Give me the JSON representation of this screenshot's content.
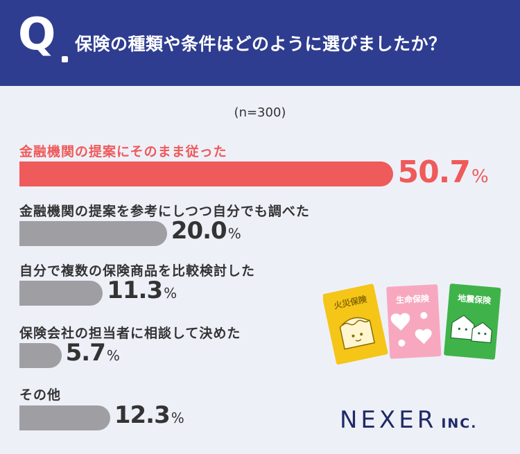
{
  "header": {
    "q_mark": "Q",
    "title": "保険の種類や条件はどのように選びましたか？"
  },
  "note": "(n=300)",
  "chart_data": {
    "type": "bar",
    "orientation": "horizontal",
    "unit": "%",
    "title": "保険の種類や条件はどのように選びましたか？",
    "categories": [
      "金融機関の提案にそのまま従った",
      "金融機関の提案を参考にしつつ自分でも調べた",
      "自分で複数の保険商品を比較検討した",
      "保険会社の担当者に相談して決めた",
      "その他"
    ],
    "values": [
      50.7,
      20.0,
      11.3,
      5.7,
      12.3
    ],
    "value_labels": [
      "50.7",
      "20.0",
      "11.3",
      "5.7",
      "12.3"
    ],
    "highlight_index": 0,
    "colors": {
      "highlight": "#ef5a5a",
      "default": "#9e9ea3"
    }
  },
  "illustration": {
    "cards": [
      {
        "label": "火災保険",
        "color": "#f5c518",
        "icon": "house-icon"
      },
      {
        "label": "生命保険",
        "color": "#f7a8bf",
        "icon": "hearts-icon"
      },
      {
        "label": "地震保険",
        "color": "#3fb34a",
        "icon": "houses-icon"
      }
    ]
  },
  "logo": {
    "main": "NEXER",
    "sub": "INC."
  },
  "colors": {
    "header_bg": "#2e3d8f",
    "page_bg": "#eef0f8",
    "logo": "#1f2a66"
  }
}
